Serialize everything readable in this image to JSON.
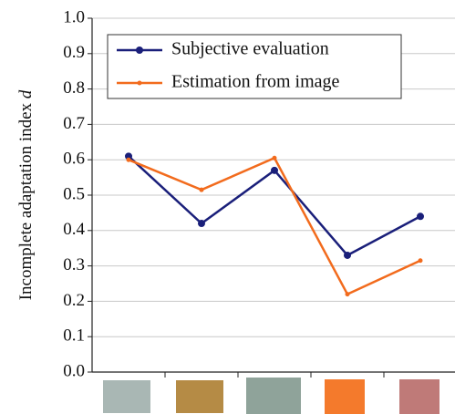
{
  "chart_data": {
    "type": "line",
    "y_label": "Incomplete adaptation index",
    "y_label_symbol": "d",
    "categories": [
      null,
      null,
      null,
      null,
      null
    ],
    "series": [
      {
        "name": "Subjective evaluation",
        "color": "#1a1f7a",
        "values": [
          0.61,
          0.42,
          0.57,
          0.33,
          0.44
        ]
      },
      {
        "name": "Estimation from image",
        "color": "#f26b1d",
        "values": [
          0.6,
          0.515,
          0.605,
          0.22,
          0.315
        ]
      }
    ],
    "ylim": [
      0,
      1
    ],
    "yticks": [
      {
        "value": 0,
        "label": "0.0"
      },
      0.1,
      0.2,
      0.3,
      0.4,
      0.5,
      0.6,
      0.7,
      0.8,
      0.9,
      {
        "value": 1,
        "label": "1.0"
      }
    ],
    "grid": true,
    "legend": "upper right"
  }
}
